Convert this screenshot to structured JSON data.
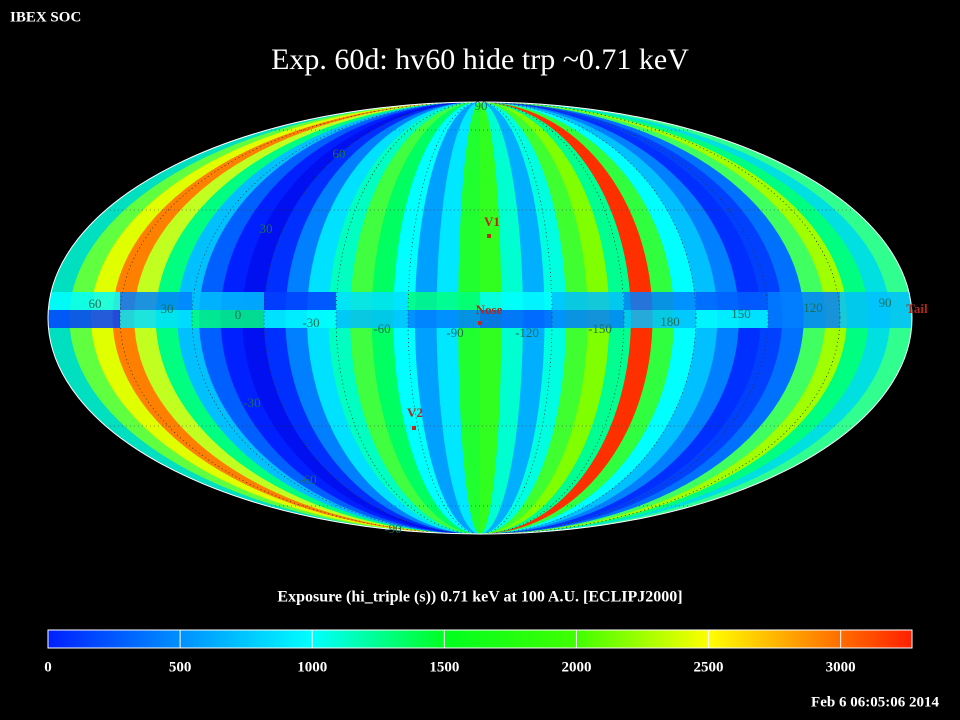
{
  "header": {
    "source": "IBEX SOC",
    "title": "Exp.   60d: hv60 hide trp ~0.71 keV",
    "timestamp": "Feb  6 06:05:06 2014"
  },
  "map": {
    "longitude_labels": [
      "60",
      "30",
      "0",
      "-30",
      "-60",
      "-90",
      "-120",
      "-150",
      "180",
      "150",
      "120",
      "90"
    ],
    "latitude_labels": [
      "90",
      "60",
      "30",
      "-30",
      "-60",
      "-90"
    ],
    "markers": [
      {
        "label": "V1"
      },
      {
        "label": "Nose"
      },
      {
        "label": "V2"
      },
      {
        "label": "Tail"
      }
    ]
  },
  "colorbar": {
    "label": "Exposure (hi_triple (s))  0.71 keV at 100 A.U. [ECLIPJ2000]",
    "range": [
      0,
      3270
    ],
    "ticks": [
      0,
      500,
      1000,
      1500,
      2000,
      2500,
      3000
    ]
  }
}
